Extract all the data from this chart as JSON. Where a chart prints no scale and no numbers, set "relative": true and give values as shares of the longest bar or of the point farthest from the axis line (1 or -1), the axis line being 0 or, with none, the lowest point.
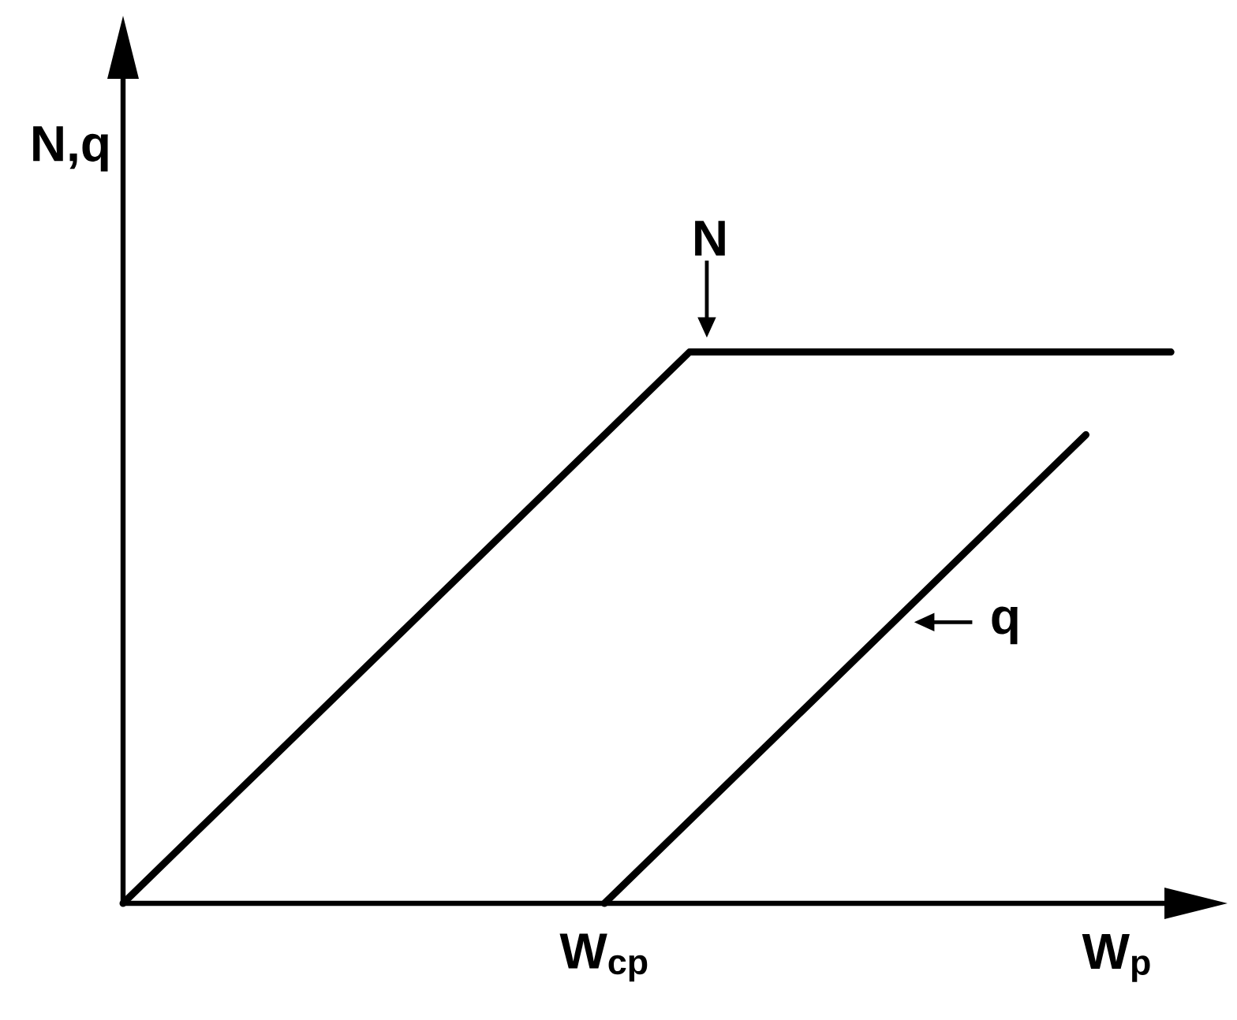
{
  "chart_data": {
    "type": "line",
    "xlabel": "W$_{p}$",
    "ylabel": "N,q",
    "relative": true,
    "annotations": [
      "W$_{cp}$"
    ],
    "categories": [
      null,
      null,
      null,
      null,
      null,
      null,
      null,
      null,
      null,
      null,
      null,
      null,
      null,
      null,
      null,
      null,
      null,
      null,
      null,
      null,
      null,
      null,
      null,
      null,
      null,
      null,
      null,
      null,
      null,
      null,
      null,
      null,
      null,
      null,
      null,
      null,
      null,
      null,
      null,
      null
    ],
    "series": [
      {
        "name": "N",
        "color": "#000000",
        "values": [
          0,
          0.05,
          0.1,
          0.15,
          0.2,
          0.25,
          0.3,
          0.35,
          0.4,
          0.45,
          0.5,
          0.55,
          0.6,
          0.65,
          0.7,
          0.75,
          0.8,
          0.85,
          0.9,
          0.95,
          1,
          1,
          1,
          1,
          1,
          1,
          1,
          1,
          1,
          1,
          1,
          1,
          1,
          1,
          1,
          1,
          1,
          1,
          null,
          null
        ]
      },
      {
        "name": "q",
        "color": "#000000",
        "values": [
          null,
          null,
          null,
          null,
          null,
          null,
          null,
          null,
          null,
          null,
          null,
          null,
          null,
          null,
          null,
          null,
          null,
          0,
          0.05,
          0.1,
          0.15,
          0.2,
          0.25,
          0.3,
          0.35,
          0.4,
          0.45,
          0.5,
          0.55,
          0.6,
          0.65,
          0.7,
          0.75,
          0.8,
          0.85,
          null,
          null,
          null,
          null,
          null
        ]
      }
    ]
  }
}
